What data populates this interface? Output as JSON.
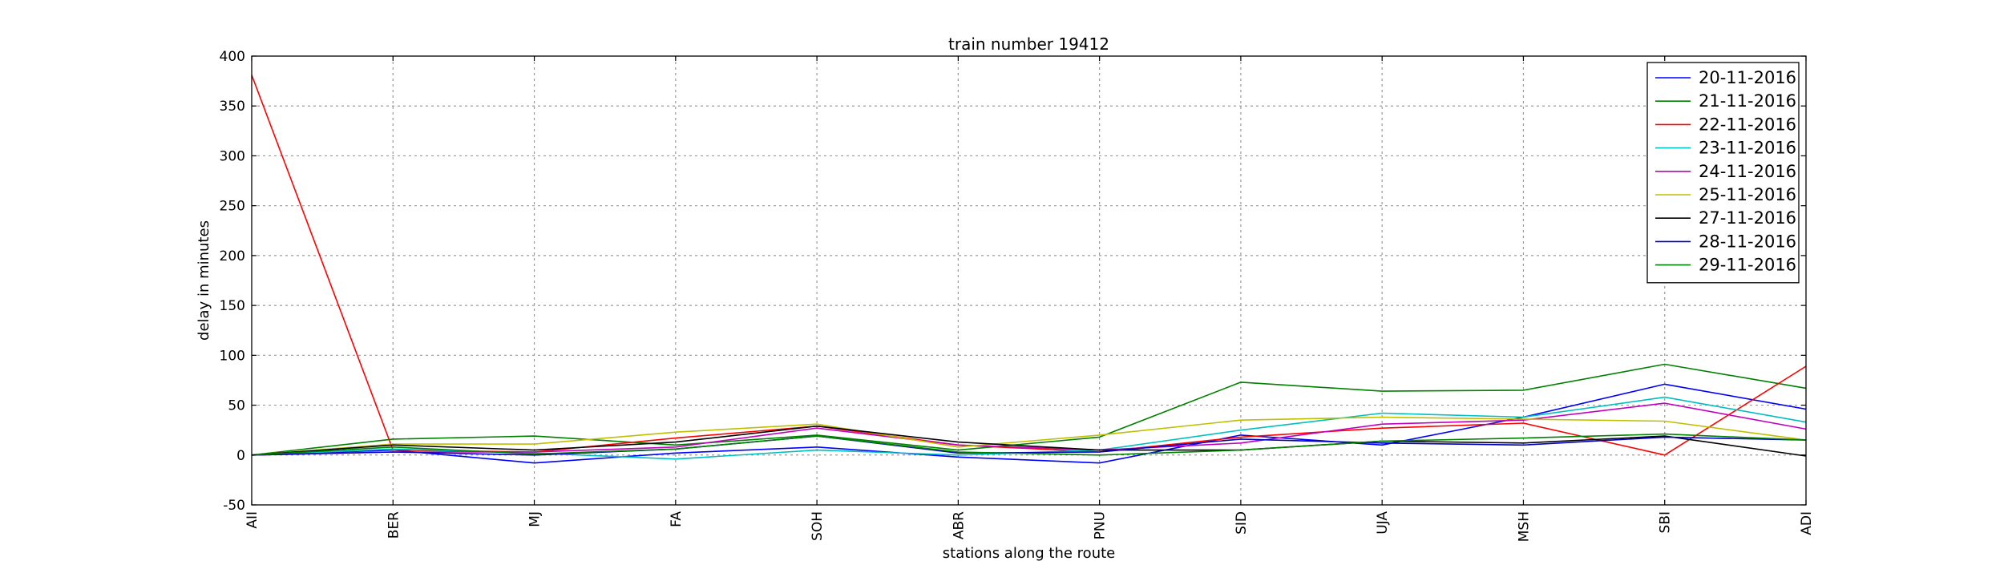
{
  "chart_data": {
    "type": "line",
    "title": "train number 19412",
    "xlabel": "stations along the route",
    "ylabel": "delay in minutes",
    "categories": [
      "AII",
      "BER",
      "MJ",
      "FA",
      "SOH",
      "ABR",
      "PNU",
      "SID",
      "UJA",
      "MSH",
      "SBI",
      "ADI"
    ],
    "ylim": [
      -50,
      400
    ],
    "yticks": [
      -50,
      0,
      50,
      100,
      150,
      200,
      250,
      300,
      350,
      400
    ],
    "grid": true,
    "legend_position": "top-right",
    "series": [
      {
        "name": "20-11-2016",
        "color": "#0000ff",
        "values": [
          0,
          5,
          -8,
          2,
          8,
          -2,
          -8,
          20,
          10,
          38,
          71,
          46
        ]
      },
      {
        "name": "21-11-2016",
        "color": "#008000",
        "values": [
          0,
          16,
          19,
          10,
          20,
          5,
          18,
          73,
          64,
          65,
          91,
          67
        ]
      },
      {
        "name": "22-11-2016",
        "color": "#ff0000",
        "values": [
          381,
          5,
          3,
          17,
          29,
          10,
          3,
          18,
          27,
          32,
          0,
          89
        ]
      },
      {
        "name": "23-11-2016",
        "color": "#00bfbf",
        "values": [
          0,
          6,
          2,
          -4,
          5,
          0,
          5,
          25,
          42,
          38,
          58,
          33
        ]
      },
      {
        "name": "24-11-2016",
        "color": "#bf00bf",
        "values": [
          0,
          3,
          3,
          8,
          27,
          10,
          5,
          12,
          31,
          35,
          52,
          26
        ]
      },
      {
        "name": "25-11-2016",
        "color": "#bfbf00",
        "values": [
          0,
          11,
          11,
          23,
          31,
          8,
          20,
          35,
          38,
          36,
          34,
          15
        ]
      },
      {
        "name": "27-11-2016",
        "color": "#000000",
        "values": [
          0,
          10,
          5,
          13,
          29,
          13,
          5,
          5,
          14,
          12,
          19,
          -1
        ]
      },
      {
        "name": "28-11-2016",
        "color": "#0000bf",
        "values": [
          0,
          3,
          0,
          6,
          19,
          2,
          3,
          16,
          12,
          10,
          18,
          15
        ]
      },
      {
        "name": "29-11-2016",
        "color": "#008000",
        "values": [
          0,
          8,
          1,
          6,
          19,
          3,
          0,
          5,
          14,
          17,
          21,
          15
        ]
      }
    ]
  }
}
